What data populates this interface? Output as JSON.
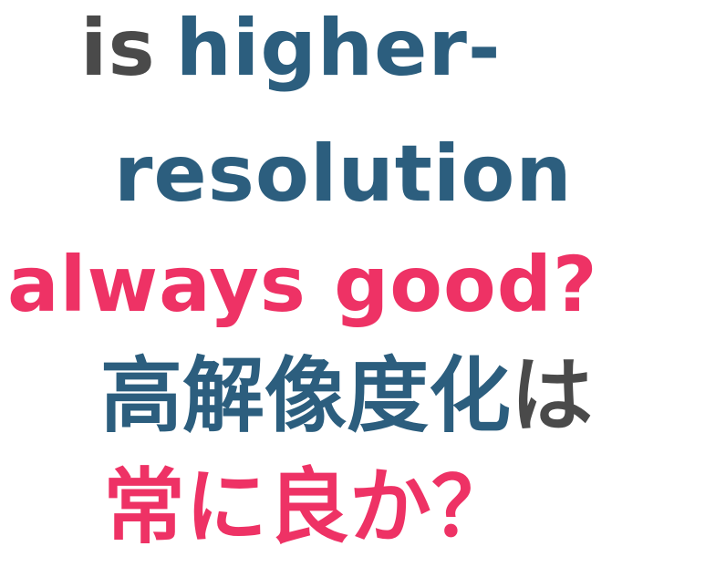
{
  "slide": {
    "line1": {
      "word1": "is",
      "word2": "higher-"
    },
    "line2": "resolution",
    "line3": "always good?",
    "line4": {
      "main": "高解像度化",
      "particle": "は"
    },
    "line5": "常に良か？"
  },
  "colors": {
    "gray": "#4a4a4a",
    "blue": "#2c5e7e",
    "pink": "#ee3265"
  }
}
